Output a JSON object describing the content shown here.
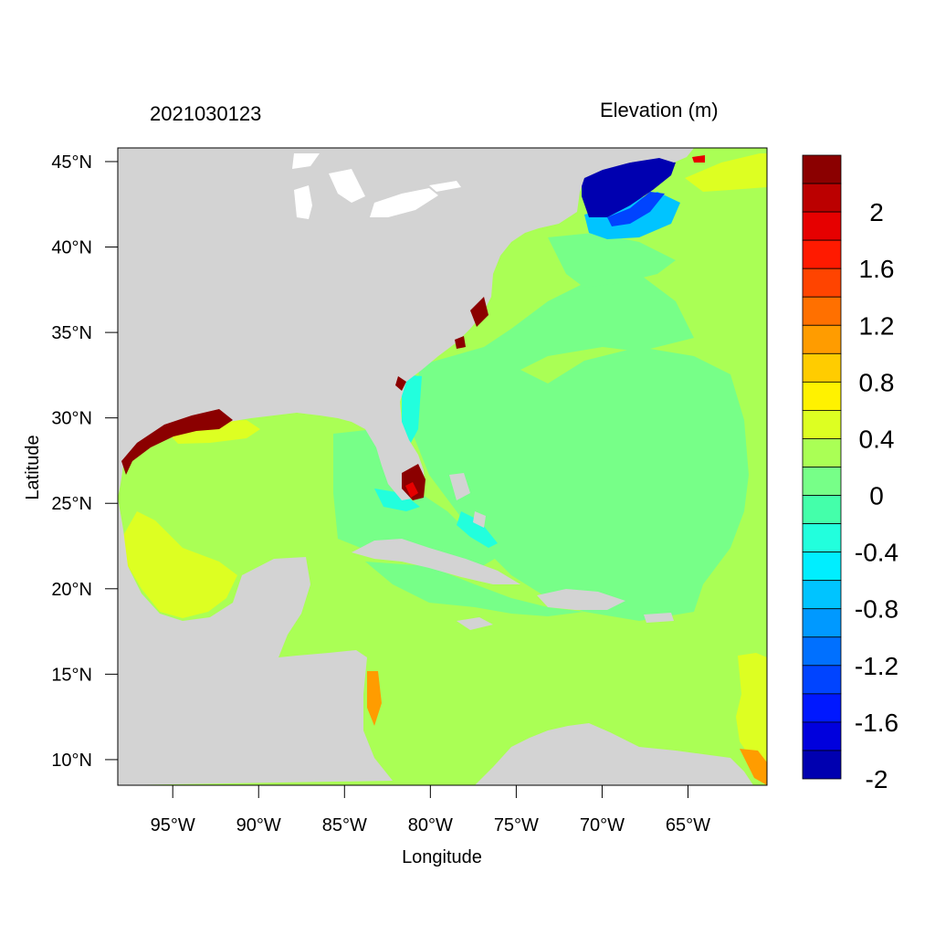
{
  "header": {
    "timestamp": "2021030123",
    "variable": "Elevation (m)"
  },
  "chart_data": {
    "type": "heatmap",
    "title": "Elevation (m)",
    "subtitle": "2021030123",
    "xlabel": "Longitude",
    "ylabel": "Latitude",
    "xlim": [
      -98.2,
      -60.4
    ],
    "ylim": [
      8.5,
      45.8
    ],
    "x_ticks": [
      {
        "value": -95,
        "label": "95°W"
      },
      {
        "value": -90,
        "label": "90°W"
      },
      {
        "value": -85,
        "label": "85°W"
      },
      {
        "value": -80,
        "label": "80°W"
      },
      {
        "value": -75,
        "label": "75°W"
      },
      {
        "value": -70,
        "label": "70°W"
      },
      {
        "value": -65,
        "label": "65°W"
      }
    ],
    "y_ticks": [
      {
        "value": 45,
        "label": "45°N"
      },
      {
        "value": 40,
        "label": "40°N"
      },
      {
        "value": 35,
        "label": "35°N"
      },
      {
        "value": 30,
        "label": "30°N"
      },
      {
        "value": 25,
        "label": "25°N"
      },
      {
        "value": 20,
        "label": "20°N"
      },
      {
        "value": 15,
        "label": "15°N"
      },
      {
        "value": 10,
        "label": "10°N"
      }
    ],
    "colorbar": {
      "levels_top_to_bottom": [
        {
          "color": "#8b0000",
          "label": ""
        },
        {
          "color": "#bb0000",
          "label": "2"
        },
        {
          "color": "#e60000",
          "label": ""
        },
        {
          "color": "#ff1a00",
          "label": "1.6"
        },
        {
          "color": "#ff4400",
          "label": ""
        },
        {
          "color": "#ff7000",
          "label": "1.2"
        },
        {
          "color": "#ff9c00",
          "label": ""
        },
        {
          "color": "#ffcc00",
          "label": "0.8"
        },
        {
          "color": "#fff200",
          "label": ""
        },
        {
          "color": "#ddff22",
          "label": "0.4"
        },
        {
          "color": "#aaff55",
          "label": ""
        },
        {
          "color": "#77ff88",
          "label": "0"
        },
        {
          "color": "#44ffaa",
          "label": ""
        },
        {
          "color": "#22ffdd",
          "label": "-0.4"
        },
        {
          "color": "#00eeff",
          "label": ""
        },
        {
          "color": "#00c4ff",
          "label": "-0.8"
        },
        {
          "color": "#0099ff",
          "label": ""
        },
        {
          "color": "#0070ff",
          "label": "-1.2"
        },
        {
          "color": "#0044ff",
          "label": ""
        },
        {
          "color": "#0018ff",
          "label": "-1.6"
        },
        {
          "color": "#0000dd",
          "label": ""
        },
        {
          "color": "#0000b0",
          "label": "-2"
        }
      ]
    },
    "land_color": "#d3d3d3",
    "ocean_background_color": "#aaff55"
  }
}
